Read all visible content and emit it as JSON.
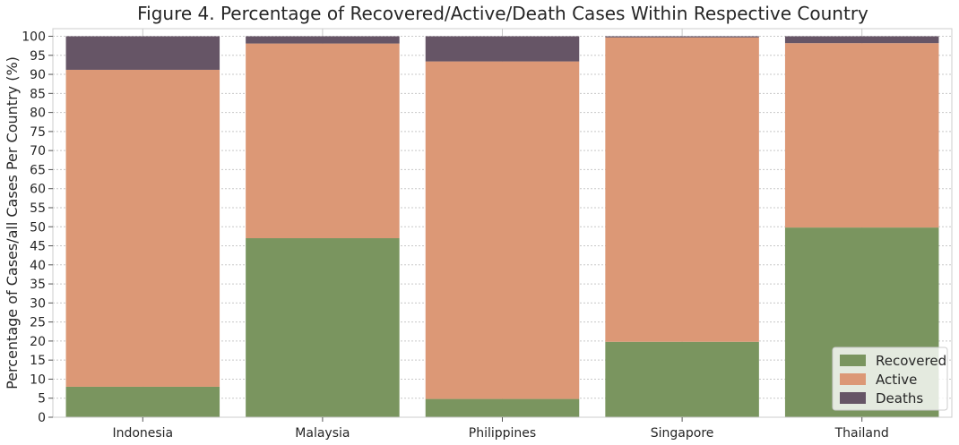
{
  "chart_data": {
    "type": "bar",
    "stacked": true,
    "title": "Figure 4. Percentage of Recovered/Active/Death Cases Within Respective Country",
    "xlabel": "",
    "ylabel": "Percentage of Cases/all Cases Per Country (%)",
    "ylim": [
      0,
      102
    ],
    "yticks": [
      0,
      5,
      10,
      15,
      20,
      25,
      30,
      35,
      40,
      45,
      50,
      55,
      60,
      65,
      70,
      75,
      80,
      85,
      90,
      95,
      100
    ],
    "grid": true,
    "legend_position": "bottom-right",
    "categories": [
      "Indonesia",
      "Malaysia",
      "Philippines",
      "Singapore",
      "Thailand"
    ],
    "series": [
      {
        "name": "Recovered",
        "color": "#7a955f",
        "values": [
          8.0,
          47.0,
          4.8,
          19.8,
          49.8
        ]
      },
      {
        "name": "Active",
        "color": "#dc9876",
        "values": [
          83.2,
          51.1,
          88.6,
          79.9,
          48.4
        ]
      },
      {
        "name": "Deaths",
        "color": "#665566",
        "values": [
          8.8,
          1.9,
          6.6,
          0.3,
          1.8
        ]
      }
    ]
  }
}
